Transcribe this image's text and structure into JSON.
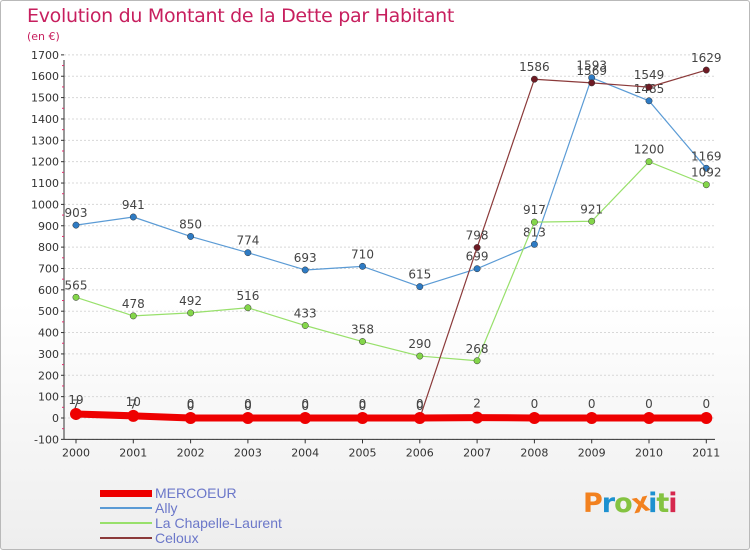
{
  "title": "Evolution du Montant de la Dette par Habitant",
  "subtitle": "(en €)",
  "logo_text": "Proxiti",
  "logo_colors": [
    "#f2811f",
    "#1d91d0",
    "#84c341",
    "#f2811f",
    "#1d91d0",
    "#84c341",
    "#d6284d"
  ],
  "colors": {
    "title": "#c71f5e",
    "axis": "#333333",
    "tick_mark": "#e0306e",
    "grid": "#d8d8d8",
    "value_label": "#444444",
    "legend_text": "#6b77c9"
  },
  "chart_data": {
    "type": "line",
    "title": "Evolution du Montant de la Dette par Habitant",
    "subtitle": "(en €)",
    "xlabel": "",
    "ylabel": "",
    "categories": [
      "2000",
      "2001",
      "2002",
      "2003",
      "2004",
      "2005",
      "2006",
      "2007",
      "2008",
      "2009",
      "2010",
      "2011"
    ],
    "ylim": [
      -100,
      1700
    ],
    "yticks": [
      -100,
      0,
      100,
      200,
      300,
      400,
      500,
      600,
      700,
      800,
      900,
      1000,
      1100,
      1200,
      1300,
      1400,
      1500,
      1600,
      1700
    ],
    "grid": "horizontal",
    "legend_position": "bottom-left",
    "series": [
      {
        "name": "Ally",
        "color": "#5b9bd5",
        "marker": "#2e7bc4",
        "values": [
          903,
          941,
          850,
          774,
          693,
          710,
          615,
          699,
          813,
          1593,
          1485,
          1169
        ]
      },
      {
        "name": "La Chapelle-Laurent",
        "color": "#98e06b",
        "marker": "#84d64a",
        "values": [
          565,
          478,
          492,
          516,
          433,
          358,
          290,
          268,
          917,
          921,
          1200,
          1092
        ]
      },
      {
        "name": "Celoux",
        "color": "#8b3a3a",
        "marker": "#6e1b24",
        "values": [
          7,
          7,
          0,
          0,
          0,
          0,
          0,
          798,
          1586,
          1569,
          1549,
          1629
        ]
      },
      {
        "name": "MERCOEUR",
        "color": "#ee0000",
        "marker": "#ee0000",
        "values": [
          19,
          10,
          0,
          0,
          0,
          0,
          0,
          2,
          0,
          0,
          0,
          0
        ]
      }
    ],
    "legend_order": [
      "MERCOEUR",
      "Ally",
      "La Chapelle-Laurent",
      "Celoux"
    ]
  }
}
